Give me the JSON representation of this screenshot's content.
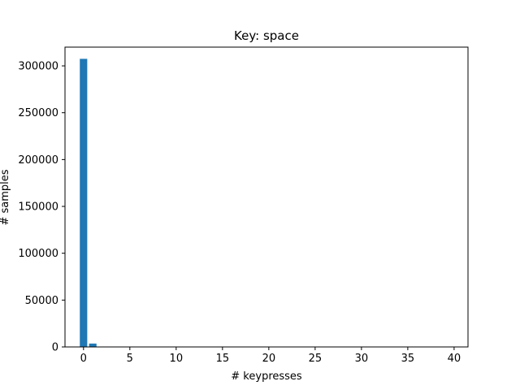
{
  "chart_data": {
    "type": "bar",
    "title": "Key: space",
    "xlabel": "# keypresses",
    "ylabel": "# samples",
    "xlim": [
      -2,
      41.5
    ],
    "ylim": [
      0,
      320000
    ],
    "xticks": [
      0,
      5,
      10,
      15,
      20,
      25,
      30,
      35,
      40
    ],
    "yticks": [
      0,
      50000,
      100000,
      150000,
      200000,
      250000,
      300000
    ],
    "bin_width": 0.8,
    "bar_color": "#1f77b4",
    "grid": false,
    "legend": "none",
    "bins": [
      {
        "x": 0,
        "value": 307500
      },
      {
        "x": 1,
        "value": 3600
      },
      {
        "x": 2,
        "value": 250
      },
      {
        "x": 3,
        "value": 30
      }
    ]
  }
}
